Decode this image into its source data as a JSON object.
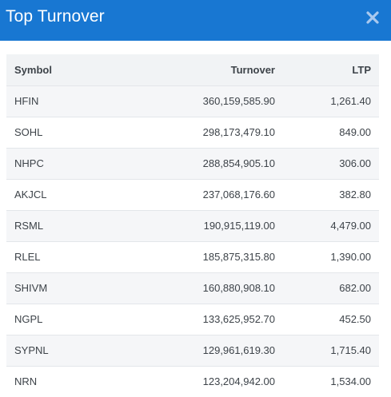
{
  "modal": {
    "title": "Top Turnover"
  },
  "table": {
    "headers": {
      "symbol": "Symbol",
      "turnover": "Turnover",
      "ltp": "LTP"
    },
    "rows": [
      {
        "symbol": "HFIN",
        "turnover": "360,159,585.90",
        "ltp": "1,261.40"
      },
      {
        "symbol": "SOHL",
        "turnover": "298,173,479.10",
        "ltp": "849.00"
      },
      {
        "symbol": "NHPC",
        "turnover": "288,854,905.10",
        "ltp": "306.00"
      },
      {
        "symbol": "AKJCL",
        "turnover": "237,068,176.60",
        "ltp": "382.80"
      },
      {
        "symbol": "RSML",
        "turnover": "190,915,119.00",
        "ltp": "4,479.00"
      },
      {
        "symbol": "RLEL",
        "turnover": "185,875,315.80",
        "ltp": "1,390.00"
      },
      {
        "symbol": "SHIVM",
        "turnover": "160,880,908.10",
        "ltp": "682.00"
      },
      {
        "symbol": "NGPL",
        "turnover": "133,625,952.70",
        "ltp": "452.50"
      },
      {
        "symbol": "SYPNL",
        "turnover": "129,961,619.30",
        "ltp": "1,715.40"
      },
      {
        "symbol": "NRN",
        "turnover": "123,204,942.00",
        "ltp": "1,534.00"
      }
    ]
  },
  "icons": {
    "close": "close-icon"
  },
  "colors": {
    "header_bg": "#1877d2",
    "header_text": "#ffffff",
    "close_icon": "#a9c9ef",
    "table_header_bg": "#f1f3f5",
    "row_stripe": "#f5f6f8",
    "text": "#3d4349"
  }
}
